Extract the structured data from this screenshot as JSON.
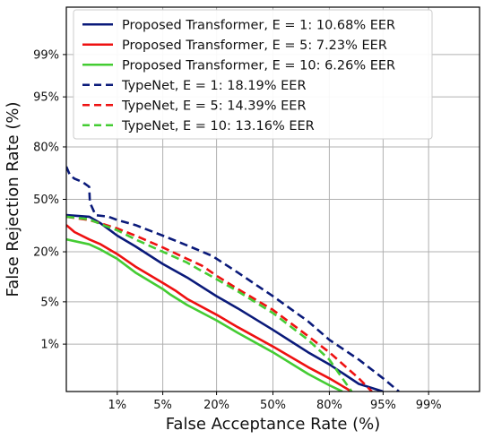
{
  "chart_data": {
    "type": "line",
    "title": "",
    "xlabel": "False Acceptance Rate (%)",
    "ylabel": "False Rejection Rate (%)",
    "scale": "normal-deviate (DET)",
    "grid": true,
    "legend_position": "top-right",
    "x_ticks": [
      "1%",
      "5%",
      "20%",
      "50%",
      "80%",
      "95%",
      "99%"
    ],
    "x_tick_values": [
      1,
      5,
      20,
      50,
      80,
      95,
      99
    ],
    "y_ticks": [
      "1%",
      "5%",
      "20%",
      "50%",
      "80%",
      "95%",
      "99%"
    ],
    "y_tick_values": [
      1,
      5,
      20,
      50,
      80,
      95,
      99
    ],
    "xlim": [
      0.1,
      99.9
    ],
    "ylim": [
      0.1,
      99.9
    ],
    "series": [
      {
        "name": "Proposed Transformer, E = 1: 10.68% EER",
        "color": "#0a1a7a",
        "dash": "solid",
        "x": [
          0.1,
          0.3,
          0.5,
          1,
          2,
          5,
          10,
          20,
          30,
          50,
          70,
          80,
          90,
          95
        ],
        "y": [
          40,
          39,
          35,
          28,
          22.5,
          15,
          10.5,
          6,
          4,
          1.8,
          0.7,
          0.4,
          0.15,
          0.1
        ]
      },
      {
        "name": "Proposed Transformer, E = 5: 7.23% EER",
        "color": "#ee1111",
        "dash": "solid",
        "x": [
          0.1,
          0.15,
          0.3,
          0.5,
          1,
          2,
          5,
          7.2,
          10,
          20,
          30,
          50,
          70,
          80,
          88
        ],
        "y": [
          34,
          30,
          26,
          23.5,
          19,
          14,
          9,
          7.2,
          5.5,
          3.2,
          2,
          0.9,
          0.35,
          0.2,
          0.1
        ]
      },
      {
        "name": "Proposed Transformer, E = 10: 6.26% EER",
        "color": "#44cc33",
        "dash": "solid",
        "x": [
          0.1,
          0.3,
          0.5,
          1,
          2,
          5,
          6.3,
          10,
          20,
          30,
          50,
          70,
          80,
          85
        ],
        "y": [
          26,
          23.5,
          21,
          17,
          12,
          7.5,
          6.3,
          4.5,
          2.6,
          1.6,
          0.7,
          0.25,
          0.14,
          0.1
        ]
      },
      {
        "name": "TypeNet, E = 1: 18.19% EER",
        "color": "#0a1a7a",
        "dash": "dashed",
        "x": [
          0.1,
          0.12,
          0.15,
          0.22,
          0.3,
          0.31,
          0.4,
          0.7,
          1,
          2,
          5,
          10,
          18.2,
          30,
          50,
          70,
          80,
          90,
          95,
          97
        ],
        "y": [
          70,
          65,
          63,
          61,
          58,
          48,
          40,
          39,
          37,
          34,
          28,
          23,
          18.2,
          12,
          6,
          2.5,
          1.2,
          0.5,
          0.2,
          0.1
        ]
      },
      {
        "name": "TypeNet, E = 5: 14.39% EER",
        "color": "#ee1111",
        "dash": "dashed",
        "x": [
          0.1,
          0.3,
          0.5,
          1,
          2,
          5,
          10,
          14.4,
          20,
          30,
          50,
          70,
          80,
          90,
          93
        ],
        "y": [
          39,
          37,
          35,
          32,
          28,
          22,
          17,
          14.4,
          11,
          7.5,
          3.8,
          1.4,
          0.7,
          0.2,
          0.1
        ]
      },
      {
        "name": "TypeNet, E = 10: 13.16% EER",
        "color": "#44cc33",
        "dash": "dashed",
        "x": [
          0.1,
          0.3,
          0.5,
          1,
          2,
          5,
          10,
          13.2,
          20,
          30,
          50,
          70,
          80,
          88
        ],
        "y": [
          39,
          37.5,
          34.5,
          31,
          26,
          20,
          15.5,
          13.2,
          10,
          7,
          3.4,
          1.2,
          0.5,
          0.1
        ]
      }
    ]
  }
}
